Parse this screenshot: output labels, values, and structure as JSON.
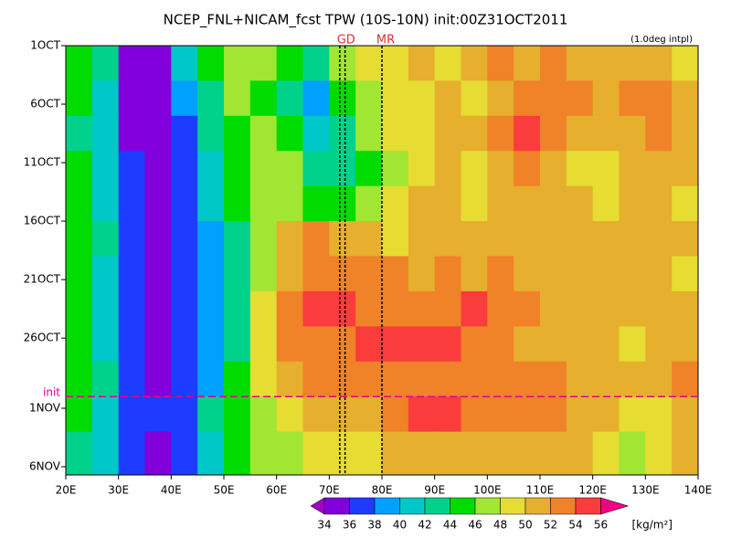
{
  "chart_data": {
    "type": "heatmap",
    "title": "NCEP_FNL+NICAM_fcst TPW (10S-10N) init:00Z31OCT2011",
    "annotation": "(1.0deg intpl)",
    "xlim": [
      20,
      140
    ],
    "xticks": [
      {
        "value": 20,
        "label": "20E"
      },
      {
        "value": 30,
        "label": "30E"
      },
      {
        "value": 40,
        "label": "40E"
      },
      {
        "value": 50,
        "label": "50E"
      },
      {
        "value": 60,
        "label": "60E"
      },
      {
        "value": 70,
        "label": "70E"
      },
      {
        "value": 80,
        "label": "80E"
      },
      {
        "value": 90,
        "label": "90E"
      },
      {
        "value": 100,
        "label": "100E"
      },
      {
        "value": 110,
        "label": "110E"
      },
      {
        "value": 120,
        "label": "120E"
      },
      {
        "value": 130,
        "label": "130E"
      },
      {
        "value": 140,
        "label": "140E"
      }
    ],
    "ylim": [
      0,
      36.7
    ],
    "yticks": [
      {
        "value": 0,
        "label": "1OCT"
      },
      {
        "value": 5,
        "label": "6OCT"
      },
      {
        "value": 10,
        "label": "11OCT"
      },
      {
        "value": 15,
        "label": "16OCT"
      },
      {
        "value": 20,
        "label": "21OCT"
      },
      {
        "value": 25,
        "label": "26OCT"
      },
      {
        "value": 31,
        "label": "1NOV"
      },
      {
        "value": 36,
        "label": "6NOV"
      }
    ],
    "xbins": [
      20,
      25,
      30,
      35,
      40,
      45,
      50,
      55,
      60,
      65,
      70,
      75,
      80,
      85,
      90,
      95,
      100,
      105,
      110,
      115,
      120,
      125,
      130,
      135,
      140
    ],
    "ybins": [
      0,
      3,
      6,
      9,
      12,
      15,
      18,
      21,
      24,
      27,
      30,
      33,
      36.7
    ],
    "values": [
      [
        44,
        42,
        34,
        35,
        40,
        44,
        46,
        47,
        45,
        43,
        46,
        48,
        49,
        50,
        49,
        51,
        52,
        51,
        52,
        51,
        50,
        51,
        50,
        49
      ],
      [
        44,
        41,
        35,
        34,
        38,
        43,
        46,
        45,
        42,
        38,
        44,
        47,
        48,
        49,
        50,
        49,
        50,
        52,
        53,
        52,
        51,
        52,
        53,
        50
      ],
      [
        43,
        40,
        35,
        34,
        37,
        42,
        45,
        46,
        44,
        40,
        42,
        46,
        48,
        49,
        50,
        51,
        53,
        54,
        53,
        51,
        50,
        51,
        53,
        50
      ],
      [
        44,
        40,
        36,
        34,
        37,
        41,
        45,
        46,
        46,
        43,
        42,
        45,
        47,
        49,
        50,
        49,
        51,
        52,
        50,
        49,
        49,
        50,
        51,
        50
      ],
      [
        44,
        41,
        36,
        35,
        36,
        40,
        44,
        46,
        47,
        45,
        45,
        46,
        48,
        50,
        50,
        49,
        50,
        51,
        50,
        50,
        49,
        50,
        50,
        49
      ],
      [
        45,
        42,
        37,
        35,
        36,
        39,
        43,
        47,
        50,
        52,
        51,
        50,
        49,
        50,
        51,
        50,
        50,
        50,
        51,
        50,
        50,
        51,
        50,
        50
      ],
      [
        44,
        41,
        36,
        35,
        36,
        38,
        42,
        47,
        51,
        53,
        53,
        52,
        52,
        51,
        52,
        51,
        52,
        51,
        50,
        50,
        51,
        51,
        50,
        49
      ],
      [
        44,
        41,
        36,
        35,
        36,
        38,
        42,
        48,
        52,
        54,
        54,
        53,
        52,
        53,
        53,
        54,
        53,
        52,
        51,
        50,
        51,
        50,
        51,
        50
      ],
      [
        44,
        41,
        36,
        35,
        36,
        38,
        43,
        49,
        52,
        53,
        53,
        54,
        55,
        55,
        54,
        53,
        52,
        51,
        51,
        50,
        50,
        49,
        50,
        50
      ],
      [
        45,
        42,
        37,
        35,
        36,
        39,
        44,
        48,
        51,
        52,
        52,
        52,
        53,
        52,
        53,
        52,
        52,
        53,
        52,
        51,
        50,
        50,
        51,
        52
      ],
      [
        44,
        41,
        37,
        36,
        37,
        42,
        45,
        47,
        49,
        50,
        50,
        51,
        52,
        54,
        55,
        53,
        52,
        53,
        52,
        51,
        50,
        48,
        49,
        50
      ],
      [
        42,
        40,
        37,
        35,
        36,
        40,
        44,
        46,
        47,
        48,
        49,
        49,
        50,
        51,
        51,
        50,
        51,
        51,
        50,
        50,
        49,
        47,
        49,
        51
      ]
    ],
    "levels": [
      34,
      36,
      38,
      40,
      42,
      44,
      46,
      48,
      50,
      52,
      54,
      56
    ],
    "colors": [
      "#a000c8",
      "#8200dc",
      "#1e3cff",
      "#00a0ff",
      "#00c8c8",
      "#00d28c",
      "#00dc00",
      "#a0e632",
      "#e6dc32",
      "#e6af2d",
      "#f08228",
      "#fa3c3c",
      "#f00082"
    ],
    "colorbar_unit": "[kg/m²]",
    "vlines": [
      {
        "label": "GD",
        "x": [
          72,
          73
        ]
      },
      {
        "label": "MR",
        "x": [
          80
        ]
      }
    ],
    "hline": {
      "label": "init",
      "y": 30,
      "color": "#e6008c"
    }
  }
}
